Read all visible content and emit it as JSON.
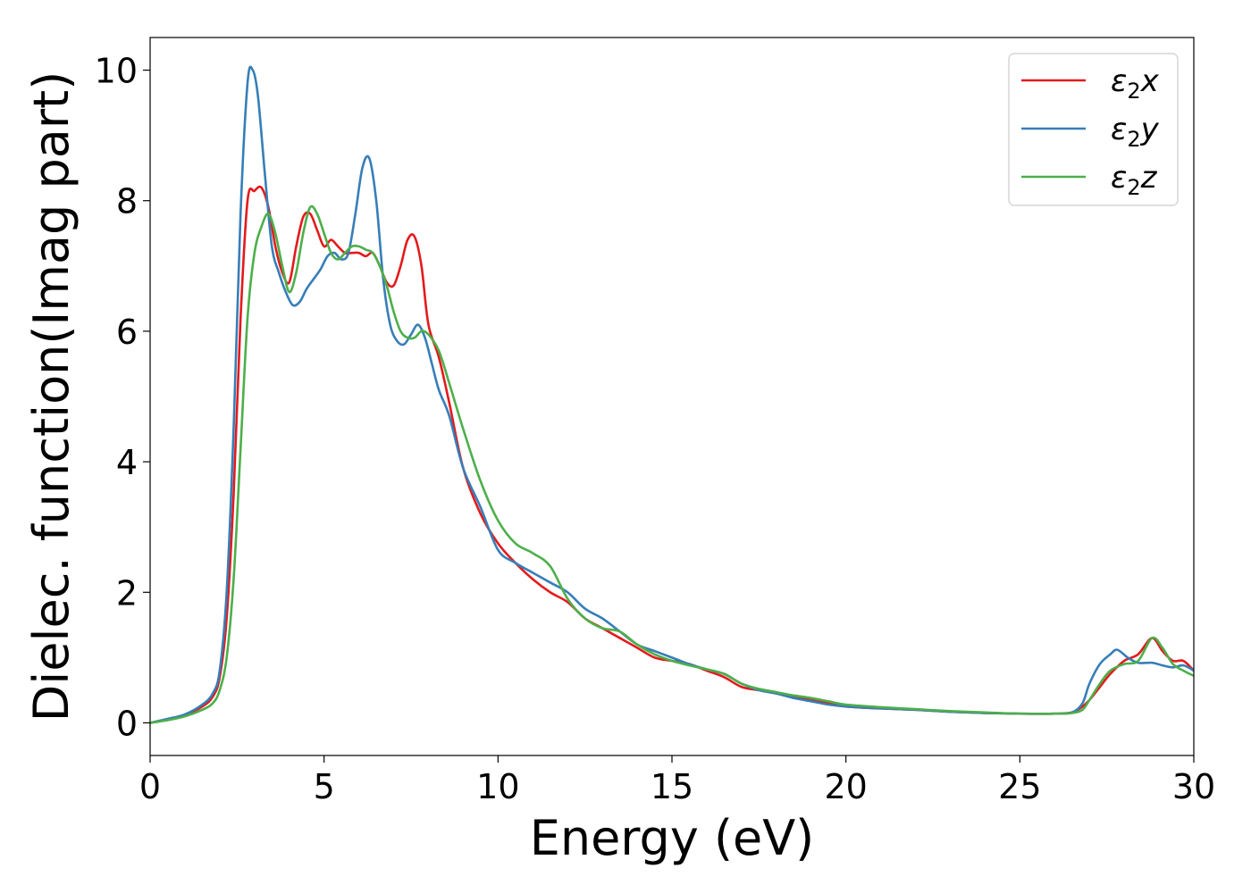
{
  "chart_data": {
    "type": "line",
    "xlabel": "Energy (eV)",
    "ylabel": "Dielec. function(Imag part)",
    "xlim": [
      0,
      30
    ],
    "ylim": [
      -0.5,
      10.5
    ],
    "xticks": [
      0,
      5,
      10,
      15,
      20,
      25,
      30
    ],
    "yticks": [
      0,
      2,
      4,
      6,
      8,
      10
    ],
    "grid": false,
    "legend_position": "top-right",
    "series": [
      {
        "name": "ε2x",
        "legend_main": "ε",
        "legend_sub": "2",
        "legend_suffix": "x",
        "color": "#e41a1c",
        "x": [
          0,
          0.5,
          1,
          1.5,
          1.8,
          2,
          2.2,
          2.4,
          2.6,
          2.8,
          3.0,
          3.2,
          3.4,
          3.6,
          3.8,
          4.0,
          4.2,
          4.4,
          4.6,
          4.8,
          5.0,
          5.2,
          5.4,
          5.6,
          5.8,
          6.0,
          6.2,
          6.4,
          6.6,
          6.8,
          7.0,
          7.2,
          7.4,
          7.6,
          7.8,
          8.0,
          8.3,
          8.6,
          9.0,
          9.5,
          10,
          10.5,
          11,
          11.5,
          12,
          12.5,
          13,
          13.5,
          14,
          14.5,
          15,
          15.5,
          16,
          16.5,
          17,
          17.5,
          18,
          18.5,
          19,
          19.5,
          20,
          21,
          22,
          23,
          24,
          25,
          26,
          26.5,
          26.8,
          27,
          27.3,
          27.6,
          28,
          28.4,
          28.8,
          29.1,
          29.4,
          29.7,
          30
        ],
        "y": [
          0,
          0.05,
          0.12,
          0.25,
          0.4,
          0.7,
          1.6,
          3.5,
          6.2,
          8.0,
          8.15,
          8.2,
          7.9,
          7.3,
          6.9,
          6.75,
          7.3,
          7.75,
          7.8,
          7.55,
          7.3,
          7.4,
          7.3,
          7.2,
          7.2,
          7.2,
          7.15,
          7.2,
          7.0,
          6.75,
          6.7,
          7.0,
          7.4,
          7.45,
          7.0,
          6.1,
          5.6,
          4.9,
          3.9,
          3.2,
          2.75,
          2.45,
          2.2,
          2.0,
          1.85,
          1.6,
          1.45,
          1.3,
          1.15,
          1.0,
          0.95,
          0.9,
          0.8,
          0.7,
          0.55,
          0.5,
          0.45,
          0.4,
          0.35,
          0.3,
          0.25,
          0.22,
          0.2,
          0.17,
          0.15,
          0.14,
          0.14,
          0.16,
          0.25,
          0.35,
          0.55,
          0.75,
          0.95,
          1.05,
          1.3,
          1.1,
          0.95,
          0.95,
          0.8
        ]
      },
      {
        "name": "ε2y",
        "legend_main": "ε",
        "legend_sub": "2",
        "legend_suffix": "y",
        "color": "#377eb8",
        "x": [
          0,
          0.5,
          1,
          1.5,
          1.8,
          2,
          2.2,
          2.4,
          2.6,
          2.8,
          2.95,
          3.1,
          3.3,
          3.5,
          3.7,
          3.9,
          4.1,
          4.3,
          4.5,
          4.7,
          4.9,
          5.1,
          5.3,
          5.5,
          5.7,
          5.9,
          6.1,
          6.3,
          6.5,
          6.7,
          6.9,
          7.1,
          7.3,
          7.5,
          7.7,
          7.9,
          8.1,
          8.3,
          8.6,
          9.0,
          9.5,
          10,
          10.5,
          11,
          11.5,
          12,
          12.5,
          13,
          13.5,
          14,
          14.5,
          15,
          15.5,
          16,
          16.5,
          17,
          17.5,
          18,
          18.5,
          19,
          19.5,
          20,
          21,
          22,
          23,
          24,
          25,
          26,
          26.5,
          26.8,
          27,
          27.3,
          27.6,
          27.8,
          28.1,
          28.4,
          28.8,
          29.1,
          29.4,
          29.7,
          30
        ],
        "y": [
          0,
          0.06,
          0.13,
          0.28,
          0.45,
          0.8,
          2.0,
          4.5,
          7.8,
          9.8,
          10.0,
          9.6,
          8.4,
          7.3,
          6.9,
          6.6,
          6.4,
          6.45,
          6.65,
          6.8,
          6.95,
          7.15,
          7.2,
          7.1,
          7.2,
          7.8,
          8.5,
          8.65,
          8.0,
          6.8,
          6.1,
          5.85,
          5.8,
          5.95,
          6.1,
          5.9,
          5.5,
          5.1,
          4.7,
          3.9,
          3.3,
          2.65,
          2.45,
          2.3,
          2.15,
          2.0,
          1.75,
          1.6,
          1.4,
          1.2,
          1.1,
          1.0,
          0.9,
          0.82,
          0.75,
          0.6,
          0.5,
          0.45,
          0.38,
          0.33,
          0.28,
          0.25,
          0.22,
          0.2,
          0.17,
          0.15,
          0.14,
          0.14,
          0.16,
          0.3,
          0.6,
          0.9,
          1.05,
          1.12,
          1.0,
          0.92,
          0.92,
          0.88,
          0.85,
          0.88,
          0.8
        ]
      },
      {
        "name": "ε2z",
        "legend_main": "ε",
        "legend_sub": "2",
        "legend_suffix": "z",
        "color": "#4daf4a",
        "x": [
          0,
          0.5,
          1,
          1.5,
          1.8,
          2,
          2.2,
          2.4,
          2.6,
          2.8,
          3.0,
          3.2,
          3.4,
          3.6,
          3.8,
          4.0,
          4.2,
          4.4,
          4.6,
          4.8,
          5.0,
          5.2,
          5.4,
          5.6,
          5.8,
          6.0,
          6.2,
          6.4,
          6.6,
          6.8,
          7.0,
          7.2,
          7.4,
          7.6,
          7.8,
          8.0,
          8.3,
          8.6,
          9.0,
          9.5,
          10,
          10.5,
          11,
          11.5,
          12,
          12.5,
          13,
          13.5,
          14,
          14.5,
          15,
          15.5,
          16,
          16.5,
          17,
          17.5,
          18,
          18.5,
          19,
          19.5,
          20,
          21,
          22,
          23,
          24,
          25,
          26,
          26.5,
          26.8,
          27,
          27.3,
          27.6,
          28,
          28.4,
          28.8,
          29.1,
          29.4,
          29.7,
          30
        ],
        "y": [
          0,
          0.04,
          0.1,
          0.2,
          0.3,
          0.5,
          1.0,
          2.2,
          4.2,
          6.2,
          7.2,
          7.6,
          7.8,
          7.5,
          7.0,
          6.6,
          6.9,
          7.5,
          7.9,
          7.8,
          7.5,
          7.2,
          7.1,
          7.2,
          7.3,
          7.3,
          7.25,
          7.2,
          7.0,
          6.7,
          6.3,
          6.0,
          5.9,
          5.9,
          6.0,
          5.95,
          5.7,
          5.2,
          4.5,
          3.7,
          3.1,
          2.75,
          2.6,
          2.4,
          1.9,
          1.6,
          1.45,
          1.4,
          1.2,
          1.05,
          0.95,
          0.88,
          0.82,
          0.75,
          0.6,
          0.52,
          0.47,
          0.42,
          0.38,
          0.33,
          0.28,
          0.24,
          0.21,
          0.18,
          0.16,
          0.14,
          0.14,
          0.15,
          0.2,
          0.35,
          0.6,
          0.8,
          0.9,
          0.95,
          1.3,
          1.15,
          0.9,
          0.8,
          0.72
        ]
      }
    ]
  }
}
